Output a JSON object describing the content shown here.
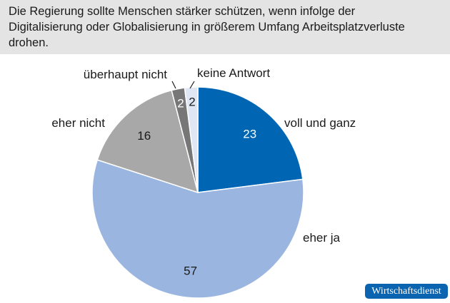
{
  "chart_data": {
    "type": "pie",
    "title": "Die Regierung sollte Menschen stärker schützen, wenn infolge der Digitalisierung oder Globalisierung in größerem Umfang Arbeitsplatzverluste drohen.",
    "slices": [
      {
        "label": "voll und ganz",
        "value": 23,
        "color": "#0066b3",
        "value_color": "#ffffff"
      },
      {
        "label": "eher ja",
        "value": 57,
        "color": "#9ab6e0",
        "value_color": "#1a1a1a"
      },
      {
        "label": "eher nicht",
        "value": 16,
        "color": "#a8a8a8",
        "value_color": "#1a1a1a"
      },
      {
        "label": "überhaupt nicht",
        "value": 2,
        "color": "#777777",
        "value_color": "#ffffff"
      },
      {
        "label": "keine Antwort",
        "value": 2,
        "color": "#dfe6f4",
        "value_color": "#1a1a1a"
      }
    ],
    "start": "top",
    "direction": "clockwise"
  },
  "source_badge": "Wirtschaftsdienst"
}
